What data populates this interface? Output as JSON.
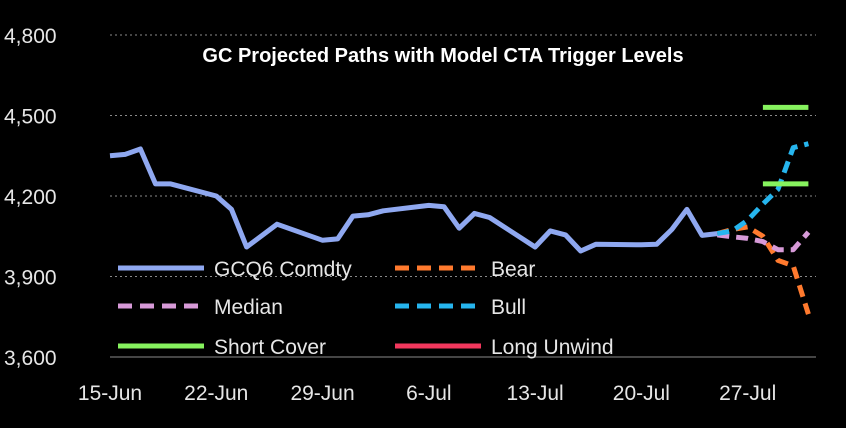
{
  "chart_data": {
    "type": "line",
    "title": "GC Projected Paths with Model CTA Trigger Levels",
    "xlabel": "",
    "ylabel": "",
    "ylim": [
      3600,
      4800
    ],
    "yticks": [
      3600,
      3900,
      4200,
      4500,
      4800
    ],
    "ytick_labels": [
      "3,600",
      "3,900",
      "4,200",
      "4,500",
      "4,800"
    ],
    "xticks": [
      0,
      7,
      14,
      21,
      28,
      35,
      42
    ],
    "xtick_labels": [
      "15-Jun",
      "22-Jun",
      "29-Jun",
      "6-Jul",
      "13-Jul",
      "20-Jul",
      "27-Jul"
    ],
    "xlim": [
      0,
      46.5
    ],
    "grid": true,
    "legend_position": "bottom-left",
    "series": [
      {
        "name": "GCQ6 Comdty",
        "color": "#8fa8f0",
        "style": "solid",
        "x": [
          0,
          1,
          2,
          3,
          4,
          7,
          8,
          9,
          11,
          14,
          15,
          16,
          17,
          18,
          21,
          22,
          23,
          24,
          25,
          28,
          29,
          30,
          31,
          32,
          35,
          36,
          37,
          38,
          39,
          40
        ],
        "y": [
          4350,
          4355,
          4375,
          4245,
          4245,
          4200,
          4150,
          4010,
          4095,
          4035,
          4040,
          4125,
          4130,
          4145,
          4165,
          4160,
          4080,
          4135,
          4120,
          4010,
          4070,
          4055,
          3995,
          4020,
          4018,
          4020,
          4075,
          4150,
          4053,
          4060
        ]
      },
      {
        "name": "Bear",
        "color": "#ff7a2e",
        "style": "dashed",
        "x": [
          40,
          41,
          42,
          43,
          44,
          45,
          46
        ],
        "y": [
          4060,
          4075,
          4085,
          4050,
          3960,
          3940,
          3760
        ]
      },
      {
        "name": "Median",
        "color": "#d79ad8",
        "style": "dashed",
        "x": [
          40,
          41,
          42,
          43,
          44,
          45,
          46
        ],
        "y": [
          4055,
          4048,
          4042,
          4030,
          4000,
          4000,
          4065
        ]
      },
      {
        "name": "Bull",
        "color": "#26b5ee",
        "style": "dashed",
        "x": [
          40,
          41,
          42,
          43,
          44,
          45,
          46
        ],
        "y": [
          4060,
          4070,
          4110,
          4170,
          4225,
          4380,
          4395
        ]
      },
      {
        "name": "Short Cover",
        "color": "#86f25e",
        "style": "solid",
        "segments": [
          {
            "x": [
              43,
              46
            ],
            "y": [
              4530,
              4530
            ]
          },
          {
            "x": [
              43,
              46
            ],
            "y": [
              4245,
              4245
            ]
          }
        ]
      },
      {
        "name": "Long Unwind",
        "color": "#f2375d",
        "style": "solid",
        "segments": []
      }
    ]
  }
}
